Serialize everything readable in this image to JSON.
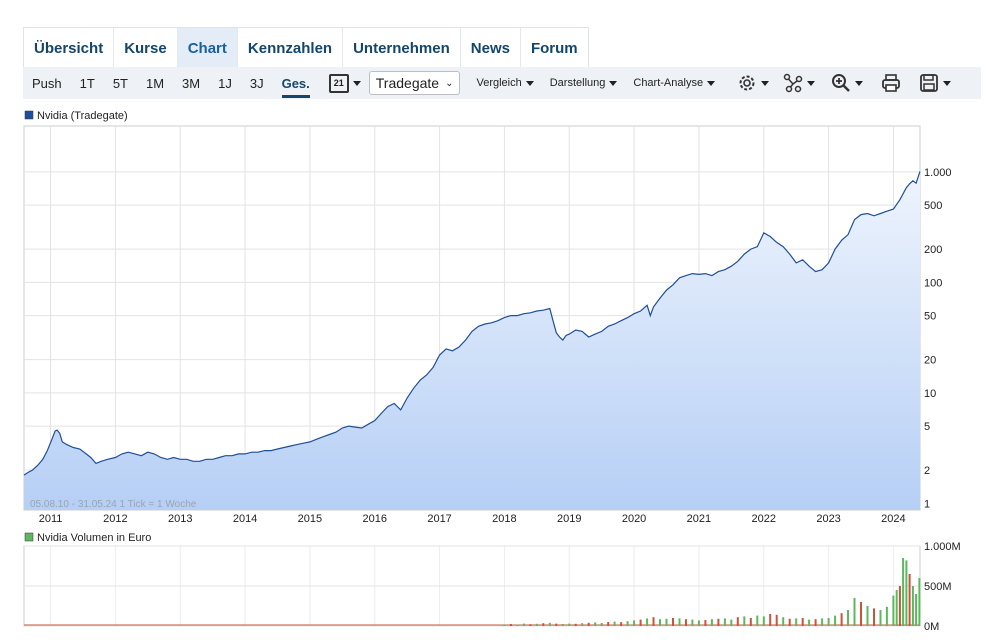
{
  "tabs": [
    "Übersicht",
    "Kurse",
    "Chart",
    "Kennzahlen",
    "Unternehmen",
    "News",
    "Forum"
  ],
  "toolbar": {
    "ranges": [
      "Push",
      "1T",
      "5T",
      "1M",
      "3M",
      "1J",
      "3J",
      "Ges."
    ],
    "calendar_day": "21",
    "exchange": "Tradegate",
    "menus": [
      "Vergleich",
      "Darstellung",
      "Chart-Analyse"
    ],
    "icons": [
      "settings-icon",
      "indicators-icon",
      "zoom-in-icon",
      "print-icon",
      "save-icon"
    ]
  },
  "colors": {
    "line": "#1f4f9a",
    "accent": "#14466b",
    "volume_up": "#5cb85c",
    "volume_down": "#c9543b"
  },
  "chart_data": [
    {
      "type": "area",
      "legend": "Nvidia (Tradegate)",
      "scale": "log",
      "period_note": "05.08.10 - 31.05.24   1 Tick = 1 Woche",
      "x_ticks": [
        "2011",
        "2012",
        "2013",
        "2014",
        "2015",
        "2016",
        "2017",
        "2018",
        "2019",
        "2020",
        "2021",
        "2022",
        "2023",
        "2024"
      ],
      "y_ticks": [
        {
          "value": 1,
          "label": "1"
        },
        {
          "value": 2,
          "label": "2"
        },
        {
          "value": 5,
          "label": "5"
        },
        {
          "value": 10,
          "label": "10"
        },
        {
          "value": 20,
          "label": "20"
        },
        {
          "value": 50,
          "label": "50"
        },
        {
          "value": 100,
          "label": "100"
        },
        {
          "value": 200,
          "label": "200"
        },
        {
          "value": 500,
          "label": "500"
        },
        {
          "value": 1000,
          "label": "1.000"
        }
      ],
      "ylim": [
        0.87,
        2600
      ],
      "xlim": [
        2010.59,
        2024.41
      ],
      "x": [
        2010.59,
        2010.65,
        2010.72,
        2010.8,
        2010.88,
        2010.95,
        2011.02,
        2011.07,
        2011.1,
        2011.14,
        2011.18,
        2011.25,
        2011.35,
        2011.45,
        2011.55,
        2011.62,
        2011.7,
        2011.78,
        2011.88,
        2012.0,
        2012.1,
        2012.2,
        2012.3,
        2012.4,
        2012.5,
        2012.6,
        2012.7,
        2012.8,
        2012.9,
        2013.0,
        2013.1,
        2013.2,
        2013.3,
        2013.4,
        2013.5,
        2013.6,
        2013.7,
        2013.8,
        2013.9,
        2014.0,
        2014.1,
        2014.2,
        2014.3,
        2014.4,
        2014.5,
        2014.6,
        2014.7,
        2014.8,
        2014.9,
        2015.0,
        2015.1,
        2015.2,
        2015.3,
        2015.4,
        2015.5,
        2015.6,
        2015.7,
        2015.8,
        2015.9,
        2016.0,
        2016.1,
        2016.2,
        2016.3,
        2016.4,
        2016.5,
        2016.6,
        2016.7,
        2016.8,
        2016.9,
        2017.0,
        2017.1,
        2017.2,
        2017.3,
        2017.4,
        2017.5,
        2017.6,
        2017.7,
        2017.8,
        2017.9,
        2018.0,
        2018.1,
        2018.2,
        2018.3,
        2018.4,
        2018.5,
        2018.6,
        2018.7,
        2018.75,
        2018.8,
        2018.85,
        2018.9,
        2018.95,
        2019.0,
        2019.1,
        2019.2,
        2019.3,
        2019.4,
        2019.5,
        2019.6,
        2019.7,
        2019.8,
        2019.9,
        2020.0,
        2020.1,
        2020.2,
        2020.25,
        2020.3,
        2020.4,
        2020.5,
        2020.6,
        2020.7,
        2020.8,
        2020.9,
        2021.0,
        2021.1,
        2021.2,
        2021.3,
        2021.4,
        2021.5,
        2021.6,
        2021.7,
        2021.8,
        2021.9,
        2022.0,
        2022.1,
        2022.2,
        2022.3,
        2022.4,
        2022.5,
        2022.6,
        2022.7,
        2022.8,
        2022.9,
        2023.0,
        2023.1,
        2023.2,
        2023.3,
        2023.4,
        2023.5,
        2023.6,
        2023.7,
        2023.8,
        2023.9,
        2024.0,
        2024.1,
        2024.2,
        2024.25,
        2024.3,
        2024.35,
        2024.41
      ],
      "y": [
        1.8,
        1.9,
        2.0,
        2.2,
        2.5,
        3.0,
        3.8,
        4.5,
        4.6,
        4.3,
        3.6,
        3.4,
        3.2,
        3.1,
        2.8,
        2.6,
        2.3,
        2.4,
        2.5,
        2.6,
        2.8,
        2.9,
        2.8,
        2.7,
        2.9,
        2.8,
        2.6,
        2.5,
        2.6,
        2.5,
        2.5,
        2.4,
        2.4,
        2.5,
        2.5,
        2.6,
        2.7,
        2.7,
        2.8,
        2.8,
        2.9,
        2.9,
        3.0,
        3.0,
        3.1,
        3.2,
        3.3,
        3.4,
        3.5,
        3.6,
        3.8,
        4.0,
        4.2,
        4.4,
        4.8,
        5.0,
        4.9,
        4.8,
        5.2,
        5.6,
        6.5,
        7.5,
        8.0,
        7.0,
        9.0,
        11.0,
        13.0,
        14.5,
        17.0,
        22.0,
        25.0,
        24.0,
        26.0,
        30.0,
        36.0,
        40.0,
        42.0,
        43.0,
        45.0,
        48.0,
        50.0,
        50.0,
        52.0,
        53.0,
        55.0,
        56.0,
        58.0,
        45.0,
        35.0,
        32.0,
        30.0,
        33.0,
        34.0,
        37.0,
        36.0,
        32.0,
        34.0,
        36.0,
        40.0,
        42.0,
        45.0,
        48.0,
        52.0,
        55.0,
        62.0,
        50.0,
        60.0,
        72.0,
        85.0,
        95.0,
        110.0,
        115.0,
        120.0,
        118.0,
        120.0,
        115.0,
        125.0,
        130.0,
        140.0,
        155.0,
        180.0,
        200.0,
        210.0,
        280.0,
        260.0,
        230.0,
        210.0,
        180.0,
        150.0,
        160.0,
        140.0,
        125.0,
        130.0,
        150.0,
        200.0,
        240.0,
        270.0,
        370.0,
        410.0,
        420.0,
        400.0,
        420.0,
        440.0,
        460.0,
        560.0,
        720.0,
        780.0,
        830.0,
        790.0,
        1010.0
      ]
    },
    {
      "type": "bar",
      "legend": "Nvidia Volumen in Euro",
      "unit": "M",
      "y_ticks": [
        {
          "value": 0,
          "label": "0M"
        },
        {
          "value": 500,
          "label": "500M"
        },
        {
          "value": 1000,
          "label": "1.000M"
        }
      ],
      "ylim": [
        0,
        1000
      ],
      "x": [
        2018.0,
        2018.1,
        2018.2,
        2018.3,
        2018.4,
        2018.5,
        2018.6,
        2018.7,
        2018.8,
        2018.9,
        2019.0,
        2019.1,
        2019.2,
        2019.3,
        2019.4,
        2019.5,
        2019.6,
        2019.7,
        2019.8,
        2019.9,
        2020.0,
        2020.1,
        2020.2,
        2020.3,
        2020.4,
        2020.5,
        2020.6,
        2020.7,
        2020.8,
        2020.9,
        2021.0,
        2021.1,
        2021.2,
        2021.3,
        2021.4,
        2021.5,
        2021.6,
        2021.7,
        2021.8,
        2021.9,
        2022.0,
        2022.1,
        2022.2,
        2022.3,
        2022.4,
        2022.5,
        2022.6,
        2022.7,
        2022.8,
        2022.9,
        2023.0,
        2023.1,
        2023.2,
        2023.3,
        2023.4,
        2023.5,
        2023.6,
        2023.7,
        2023.8,
        2023.9,
        2024.0,
        2024.05,
        2024.1,
        2024.15,
        2024.2,
        2024.25,
        2024.3,
        2024.35,
        2024.4
      ],
      "values": [
        20,
        25,
        18,
        30,
        22,
        28,
        35,
        40,
        30,
        25,
        30,
        28,
        35,
        40,
        45,
        38,
        50,
        55,
        48,
        60,
        70,
        80,
        95,
        110,
        85,
        90,
        100,
        95,
        85,
        80,
        70,
        75,
        85,
        90,
        95,
        80,
        110,
        120,
        100,
        130,
        120,
        150,
        140,
        110,
        90,
        95,
        100,
        80,
        85,
        95,
        100,
        130,
        160,
        200,
        350,
        300,
        250,
        220,
        200,
        240,
        380,
        450,
        500,
        850,
        820,
        650,
        500,
        400,
        600
      ],
      "up": [
        true,
        false,
        true,
        true,
        false,
        true,
        false,
        true,
        false,
        true,
        true,
        false,
        true,
        false,
        true,
        true,
        false,
        true,
        false,
        true,
        true,
        false,
        true,
        false,
        true,
        true,
        false,
        true,
        false,
        true,
        true,
        false,
        true,
        false,
        true,
        true,
        false,
        true,
        false,
        true,
        true,
        false,
        false,
        true,
        false,
        true,
        false,
        true,
        false,
        true,
        true,
        true,
        false,
        true,
        true,
        false,
        true,
        false,
        true,
        true,
        true,
        true,
        false,
        true,
        true,
        false,
        true,
        true,
        true
      ],
      "baseline_start": 2010.59
    }
  ]
}
